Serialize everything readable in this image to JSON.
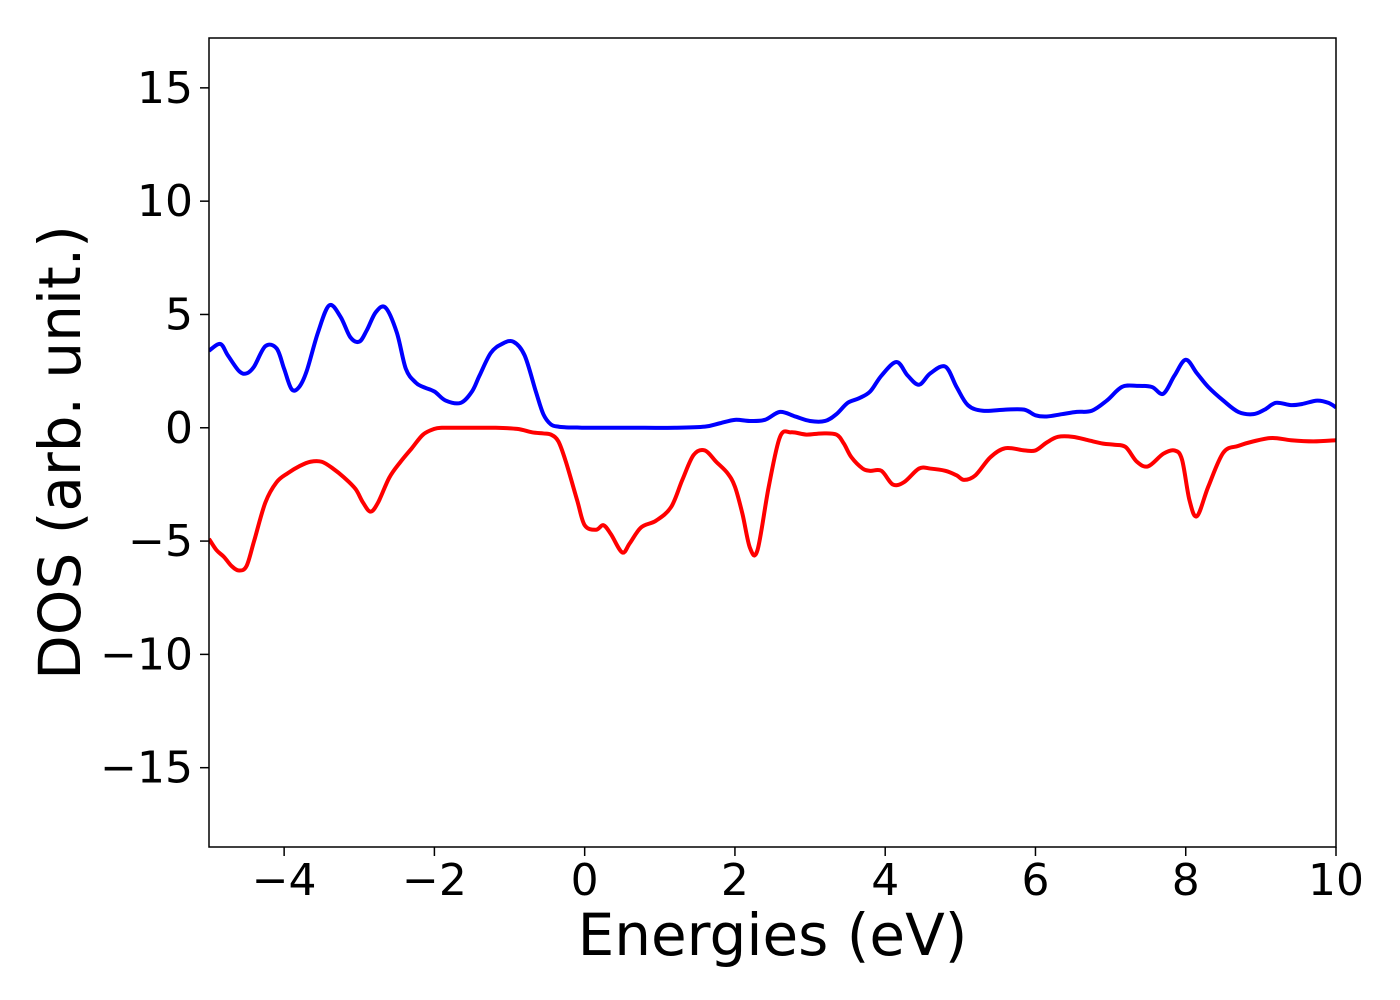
{
  "chart_data": {
    "type": "line",
    "title": "",
    "xlabel": "Energies (eV)",
    "ylabel": "DOS (arb. unit.)",
    "xlim": [
      -5,
      10
    ],
    "ylim": [
      -18.5,
      17.2
    ],
    "xticks": [
      -4,
      -2,
      0,
      2,
      4,
      6,
      8,
      10
    ],
    "yticks": [
      -15,
      -10,
      -5,
      0,
      5,
      10,
      15
    ],
    "xtick_labels": [
      "−4",
      "−2",
      "0",
      "2",
      "4",
      "6",
      "8",
      "10"
    ],
    "ytick_labels": [
      "−15",
      "−10",
      "−5",
      "0",
      "5",
      "10",
      "15"
    ],
    "grid": false,
    "series": [
      {
        "color": "#0000ff",
        "x": [
          -5.0,
          -4.85,
          -4.75,
          -4.6,
          -4.5,
          -4.4,
          -4.25,
          -4.1,
          -4.0,
          -3.9,
          -3.8,
          -3.7,
          -3.55,
          -3.4,
          -3.25,
          -3.12,
          -3.0,
          -2.9,
          -2.78,
          -2.65,
          -2.5,
          -2.38,
          -2.25,
          -2.15,
          -2.0,
          -1.85,
          -1.65,
          -1.5,
          -1.4,
          -1.25,
          -1.1,
          -0.95,
          -0.8,
          -0.65,
          -0.55,
          -0.45,
          -0.35,
          -0.25,
          -0.1,
          0.0,
          0.3,
          0.8,
          1.2,
          1.6,
          1.8,
          2.0,
          2.2,
          2.4,
          2.6,
          2.8,
          3.0,
          3.2,
          3.35,
          3.5,
          3.65,
          3.8,
          3.95,
          4.15,
          4.3,
          4.45,
          4.6,
          4.8,
          4.95,
          5.1,
          5.3,
          5.6,
          5.85,
          6.0,
          6.15,
          6.35,
          6.55,
          6.75,
          6.95,
          7.15,
          7.35,
          7.55,
          7.7,
          7.85,
          8.0,
          8.15,
          8.3,
          8.5,
          8.7,
          8.9,
          9.05,
          9.2,
          9.4,
          9.55,
          9.75,
          9.9,
          10.0
        ],
        "y": [
          3.4,
          3.7,
          3.2,
          2.5,
          2.4,
          2.7,
          3.6,
          3.5,
          2.6,
          1.7,
          1.8,
          2.5,
          4.2,
          5.4,
          4.9,
          4.0,
          3.8,
          4.3,
          5.1,
          5.3,
          4.2,
          2.6,
          2.0,
          1.8,
          1.6,
          1.2,
          1.1,
          1.6,
          2.3,
          3.3,
          3.7,
          3.8,
          3.2,
          1.6,
          0.6,
          0.15,
          0.05,
          0.02,
          0.01,
          0.0,
          0.0,
          0.0,
          0.0,
          0.05,
          0.2,
          0.35,
          0.3,
          0.35,
          0.7,
          0.5,
          0.3,
          0.3,
          0.6,
          1.1,
          1.3,
          1.6,
          2.3,
          2.9,
          2.3,
          1.9,
          2.4,
          2.7,
          1.8,
          1.0,
          0.75,
          0.8,
          0.8,
          0.55,
          0.5,
          0.6,
          0.7,
          0.75,
          1.2,
          1.8,
          1.85,
          1.8,
          1.5,
          2.3,
          3.0,
          2.4,
          1.8,
          1.2,
          0.7,
          0.6,
          0.8,
          1.1,
          1.0,
          1.05,
          1.2,
          1.1,
          0.9
        ]
      },
      {
        "color": "#ff0000",
        "x": [
          -5.0,
          -4.9,
          -4.8,
          -4.7,
          -4.6,
          -4.5,
          -4.4,
          -4.25,
          -4.1,
          -3.95,
          -3.8,
          -3.65,
          -3.5,
          -3.35,
          -3.2,
          -3.05,
          -2.95,
          -2.85,
          -2.75,
          -2.6,
          -2.45,
          -2.3,
          -2.15,
          -2.0,
          -1.9,
          -1.7,
          -1.5,
          -1.2,
          -0.9,
          -0.7,
          -0.55,
          -0.45,
          -0.35,
          -0.25,
          -0.1,
          0.0,
          0.15,
          0.25,
          0.35,
          0.5,
          0.6,
          0.75,
          0.95,
          1.15,
          1.3,
          1.45,
          1.6,
          1.75,
          1.9,
          2.0,
          2.1,
          2.2,
          2.3,
          2.45,
          2.6,
          2.75,
          2.95,
          3.15,
          3.35,
          3.45,
          3.55,
          3.7,
          3.8,
          3.95,
          4.1,
          4.25,
          4.45,
          4.6,
          4.8,
          4.95,
          5.05,
          5.2,
          5.4,
          5.6,
          5.85,
          6.0,
          6.15,
          6.3,
          6.5,
          6.7,
          6.9,
          7.05,
          7.2,
          7.35,
          7.5,
          7.7,
          7.85,
          7.95,
          8.05,
          8.15,
          8.3,
          8.5,
          8.7,
          8.9,
          9.15,
          9.4,
          9.7,
          10.0
        ],
        "y": [
          -4.9,
          -5.4,
          -5.7,
          -6.1,
          -6.3,
          -6.1,
          -5.0,
          -3.3,
          -2.4,
          -2.0,
          -1.7,
          -1.5,
          -1.5,
          -1.8,
          -2.2,
          -2.7,
          -3.3,
          -3.7,
          -3.3,
          -2.2,
          -1.5,
          -0.9,
          -0.3,
          -0.05,
          0.0,
          0.0,
          0.0,
          0.0,
          -0.05,
          -0.2,
          -0.25,
          -0.3,
          -0.6,
          -1.5,
          -3.2,
          -4.3,
          -4.5,
          -4.3,
          -4.7,
          -5.5,
          -5.1,
          -4.4,
          -4.1,
          -3.5,
          -2.3,
          -1.2,
          -1.0,
          -1.5,
          -2.0,
          -2.6,
          -3.8,
          -5.3,
          -5.4,
          -2.6,
          -0.4,
          -0.2,
          -0.3,
          -0.25,
          -0.3,
          -0.7,
          -1.3,
          -1.8,
          -1.9,
          -1.9,
          -2.5,
          -2.4,
          -1.8,
          -1.8,
          -1.9,
          -2.1,
          -2.3,
          -2.1,
          -1.3,
          -0.9,
          -1.0,
          -1.0,
          -0.65,
          -0.4,
          -0.4,
          -0.55,
          -0.7,
          -0.75,
          -0.85,
          -1.5,
          -1.7,
          -1.15,
          -1.0,
          -1.4,
          -3.2,
          -3.9,
          -2.6,
          -1.1,
          -0.8,
          -0.6,
          -0.45,
          -0.55,
          -0.6,
          -0.55
        ]
      }
    ]
  }
}
